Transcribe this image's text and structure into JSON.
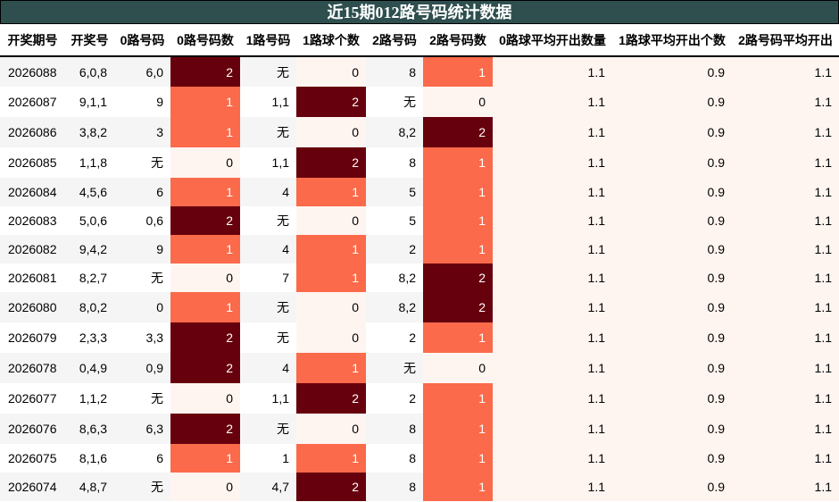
{
  "title": "近15期012路号码统计数据",
  "headers": [
    "开奖期号",
    "开奖号",
    "0路号码",
    "0路号码数",
    "1路号码",
    "1路球个数",
    "2路号码",
    "2路号码数",
    "0路球平均开出数量",
    "1路球平均开出个数",
    "2路号码平均开出"
  ],
  "colors": {
    "title_bg": "#2f4f4f",
    "count_2": "#67000d",
    "count_1": "#fb6a4a",
    "count_0": "#fff5f0"
  },
  "rows": [
    [
      "2026088",
      "6,0,8",
      "6,0",
      "2",
      "无",
      "0",
      "8",
      "1",
      "1.1",
      "0.9",
      "1.1"
    ],
    [
      "2026087",
      "9,1,1",
      "9",
      "1",
      "1,1",
      "2",
      "无",
      "0",
      "1.1",
      "0.9",
      "1.1"
    ],
    [
      "2026086",
      "3,8,2",
      "3",
      "1",
      "无",
      "0",
      "8,2",
      "2",
      "1.1",
      "0.9",
      "1.1"
    ],
    [
      "2026085",
      "1,1,8",
      "无",
      "0",
      "1,1",
      "2",
      "8",
      "1",
      "1.1",
      "0.9",
      "1.1"
    ],
    [
      "2026084",
      "4,5,6",
      "6",
      "1",
      "4",
      "1",
      "5",
      "1",
      "1.1",
      "0.9",
      "1.1"
    ],
    [
      "2026083",
      "5,0,6",
      "0,6",
      "2",
      "无",
      "0",
      "5",
      "1",
      "1.1",
      "0.9",
      "1.1"
    ],
    [
      "2026082",
      "9,4,2",
      "9",
      "1",
      "4",
      "1",
      "2",
      "1",
      "1.1",
      "0.9",
      "1.1"
    ],
    [
      "2026081",
      "8,2,7",
      "无",
      "0",
      "7",
      "1",
      "8,2",
      "2",
      "1.1",
      "0.9",
      "1.1"
    ],
    [
      "2026080",
      "8,0,2",
      "0",
      "1",
      "无",
      "0",
      "8,2",
      "2",
      "1.1",
      "0.9",
      "1.1"
    ],
    [
      "2026079",
      "2,3,3",
      "3,3",
      "2",
      "无",
      "0",
      "2",
      "1",
      "1.1",
      "0.9",
      "1.1"
    ],
    [
      "2026078",
      "0,4,9",
      "0,9",
      "2",
      "4",
      "1",
      "无",
      "0",
      "1.1",
      "0.9",
      "1.1"
    ],
    [
      "2026077",
      "1,1,2",
      "无",
      "0",
      "1,1",
      "2",
      "2",
      "1",
      "1.1",
      "0.9",
      "1.1"
    ],
    [
      "2026076",
      "8,6,3",
      "6,3",
      "2",
      "无",
      "0",
      "8",
      "1",
      "1.1",
      "0.9",
      "1.1"
    ],
    [
      "2026075",
      "8,1,6",
      "6",
      "1",
      "1",
      "1",
      "8",
      "1",
      "1.1",
      "0.9",
      "1.1"
    ],
    [
      "2026074",
      "4,8,7",
      "无",
      "0",
      "4,7",
      "2",
      "8",
      "1",
      "1.1",
      "0.9",
      "1.1"
    ]
  ]
}
